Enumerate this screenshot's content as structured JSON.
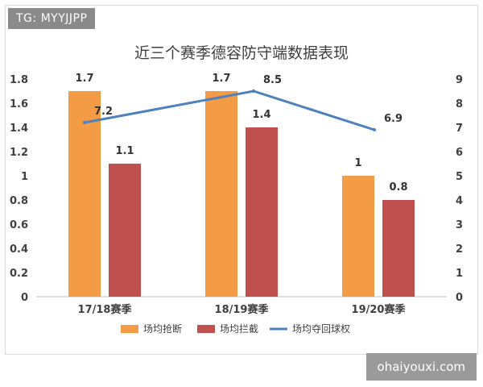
{
  "watermark_top": "TG: MYYJJPP",
  "watermark_bottom": "ohaiyouxi.com",
  "chart_data": {
    "type": "bar",
    "title": "近三个赛季德容防守端数据表现",
    "categories": [
      "17/18赛季",
      "18/19赛季",
      "19/20赛季"
    ],
    "series": [
      {
        "name": "场均抢断",
        "kind": "bar",
        "axis": "left",
        "color": "#F39C45",
        "values": [
          1.7,
          1.7,
          1.0
        ],
        "labels": [
          "1.7",
          "1.7",
          "1"
        ]
      },
      {
        "name": "场均拦截",
        "kind": "bar",
        "axis": "left",
        "color": "#C0504D",
        "values": [
          1.1,
          1.4,
          0.8
        ],
        "labels": [
          "1.1",
          "1.4",
          "0.8"
        ]
      },
      {
        "name": "场均夺回球权",
        "kind": "line",
        "axis": "right",
        "color": "#4F81BD",
        "values": [
          7.2,
          8.5,
          6.9
        ],
        "labels": [
          "7.2",
          "8.5",
          "6.9"
        ]
      }
    ],
    "y_left": {
      "min": 0,
      "max": 1.8,
      "ticks": [
        "0",
        "0.2",
        "0.4",
        "0.6",
        "0.8",
        "1",
        "1.2",
        "1.4",
        "1.6",
        "1.8"
      ]
    },
    "y_right": {
      "min": 0,
      "max": 9,
      "ticks": [
        "0",
        "1",
        "2",
        "3",
        "4",
        "5",
        "6",
        "7",
        "8",
        "9"
      ]
    },
    "grid": false,
    "legend_position": "bottom"
  }
}
